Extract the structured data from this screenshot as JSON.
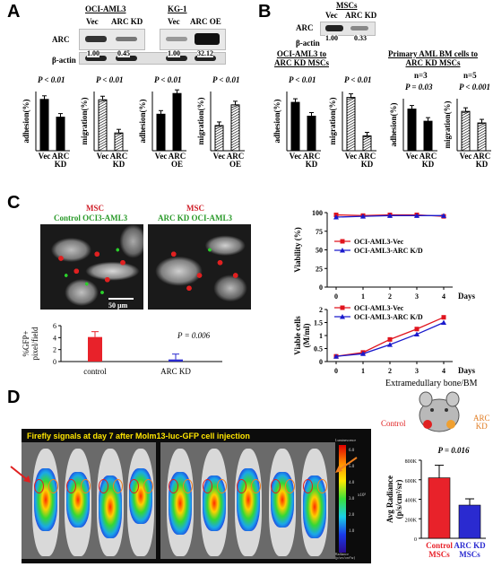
{
  "panels": {
    "A": {
      "letter": "A",
      "lanes": {
        "g1_title": "OCI-AML3",
        "g1_l1": "Vec",
        "g1_l2": "ARC KD",
        "g2_title": "KG-1",
        "g2_l1": "Vec",
        "g2_l2": "ARC OE"
      },
      "blot_rows": {
        "arc": "ARC",
        "actin": "β-actin"
      },
      "ratios": [
        "1.00",
        "0.45",
        "1.00",
        "32.12"
      ],
      "charts": [
        {
          "kind": "adhesion",
          "ylabel": "adhesion(%)",
          "pvalue": "P < 0.01",
          "categories": [
            "Vec",
            "ARC\nKD"
          ],
          "values": [
            52,
            34
          ],
          "ylim": [
            0,
            60
          ]
        },
        {
          "kind": "migration",
          "ylabel": "migration(%)",
          "pvalue": "P < 0.01",
          "categories": [
            "Vec",
            "ARC\nKD"
          ],
          "values": [
            43,
            15
          ],
          "ylim": [
            0,
            50
          ]
        },
        {
          "kind": "adhesion",
          "ylabel": "adhesion(%)",
          "pvalue": "P < 0.01",
          "categories": [
            "Vec",
            "ARC\nOE"
          ],
          "values": [
            37,
            58
          ],
          "ylim": [
            0,
            60
          ]
        },
        {
          "kind": "migration",
          "ylabel": "migration(%)",
          "pvalue": "P < 0.01",
          "categories": [
            "Vec",
            "ARC\nOE"
          ],
          "values": [
            17,
            31
          ],
          "ylim": [
            0,
            40
          ]
        }
      ]
    },
    "B": {
      "letter": "B",
      "blot_title": "MSCs",
      "lanes": [
        "Vec",
        "ARC KD"
      ],
      "rows": {
        "arc": "ARC",
        "actin": "β-actin"
      },
      "ratios": [
        "1.00",
        "0.33"
      ],
      "sub1": "OCI-AML3 to\nARC KD MSCs",
      "sub2": "Primary AML BM cells to\nARC KD MSCs",
      "n1": "n=3",
      "n2": "n=5",
      "charts": [
        {
          "ylabel": "adhesion(%)",
          "pvalue": "P < 0.01",
          "categories": [
            "Vec",
            "ARC\nKD"
          ],
          "values": [
            49,
            35
          ],
          "ylim": [
            0,
            60
          ]
        },
        {
          "ylabel": "migration(%)",
          "pvalue": "P < 0.01",
          "categories": [
            "Vec",
            "ARC\nKD"
          ],
          "values": [
            36,
            10
          ],
          "ylim": [
            0,
            40
          ]
        },
        {
          "ylabel": "adhesion(%)",
          "pvalue": "P = 0.03",
          "categories": [
            "Vec",
            "ARC\nKD"
          ],
          "values": [
            24,
            17
          ],
          "ylim": [
            0,
            30
          ]
        },
        {
          "ylabel": "migration(%)",
          "pvalue": "P < 0.001",
          "categories": [
            "Vec",
            "ARC\nKD"
          ],
          "values": [
            34,
            24
          ],
          "ylim": [
            0,
            45
          ]
        }
      ]
    },
    "C": {
      "letter": "C",
      "img1_title": "MSC",
      "img1_sub": "Control OCI3-AML3",
      "img2_title": "MSC",
      "img2_sub": "ARC KD OCI-AML3",
      "scalebar": "50 µm",
      "gfp_chart": {
        "type": "bar",
        "ylabel": "%GFP+\npixel/field",
        "pvalue": "P = 0.006",
        "categories": [
          "control",
          "ARC KD"
        ],
        "values": [
          4.1,
          0.35
        ],
        "ylim": [
          0,
          6
        ],
        "yticks": [
          "0",
          "2",
          "4",
          "6"
        ],
        "colors": [
          "#e8222a",
          "#2a2ad0"
        ]
      },
      "viability_chart": {
        "type": "line",
        "ylabel": "Viability (%)",
        "xlabel": "Days",
        "x": [
          0,
          1,
          2,
          3,
          4
        ],
        "ylim": [
          0,
          100
        ],
        "yticks": [
          "0",
          "25",
          "50",
          "75",
          "100"
        ],
        "series": [
          {
            "name": "OCI-AML3-Vec",
            "values": [
              97,
              96,
              97,
              97,
              95
            ],
            "color": "#e0141e"
          },
          {
            "name": "OCI-AML3-ARC K/D",
            "values": [
              94,
              95,
              96,
              96,
              96
            ],
            "color": "#1a1acc"
          }
        ]
      },
      "viable_chart": {
        "type": "line",
        "ylabel": "Viable cells\n(M/ml)",
        "xlabel": "Days",
        "x": [
          0,
          1,
          2,
          3,
          4
        ],
        "ylim": [
          0,
          2
        ],
        "yticks": [
          "0",
          "0.5",
          "1",
          "1.5",
          "2"
        ],
        "series": [
          {
            "name": "OCI-AML3-Vec",
            "values": [
              0.2,
              0.35,
              0.85,
              1.25,
              1.7
            ],
            "color": "#e0141e"
          },
          {
            "name": "OCI-AML3-ARC K/D",
            "values": [
              0.2,
              0.3,
              0.65,
              1.05,
              1.5
            ],
            "color": "#1a1acc"
          }
        ]
      }
    },
    "D": {
      "letter": "D",
      "banner": "Firefly signals at day 7 after Molm13-luc-GFP cell injection",
      "scale_title": "Luminescence",
      "scale_ticks": [
        "6.0",
        "5.0",
        "4.0",
        "3.0",
        "2.0",
        "1.0"
      ],
      "scale_unit": "x10⁵",
      "scale_foot": "Radiance\n(p/sec/cm²/sr)",
      "schema_title": "Extramedullary bone/BM",
      "schema_control": "Control",
      "schema_arc": "ARC\nKD",
      "radiance_chart": {
        "type": "bar",
        "ylabel": "Avg Radiance\n(p/s/cm²/sr)",
        "pvalue": "P = 0.016",
        "categories": [
          "Control\nMSCs",
          "ARC KD\nMSCs"
        ],
        "values": [
          620000,
          340000
        ],
        "ylim": [
          0,
          800000
        ],
        "yticks": [
          "0",
          "200K",
          "400K",
          "600K",
          "800K"
        ],
        "colors": [
          "#e8222a",
          "#2a2ad0"
        ]
      }
    }
  }
}
